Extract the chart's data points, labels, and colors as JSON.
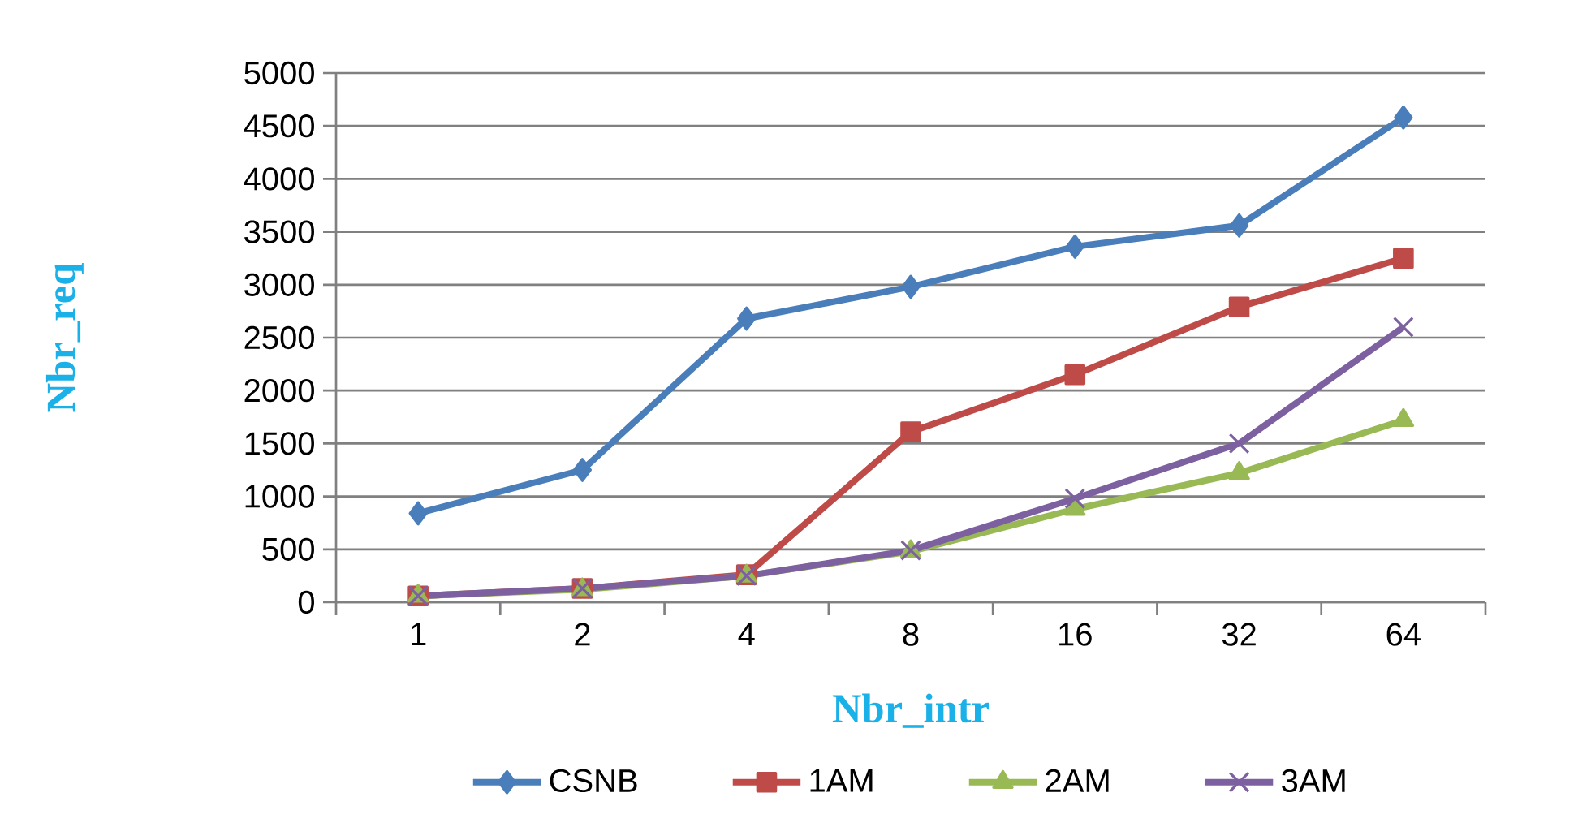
{
  "chart_data": {
    "type": "line",
    "xlabel": "Nbr_intr",
    "ylabel": "Nbr_req",
    "categories": [
      "1",
      "2",
      "4",
      "8",
      "16",
      "32",
      "64"
    ],
    "series": [
      {
        "name": "CSNB",
        "color": "#4a7ebb",
        "marker": "diamond",
        "values": [
          840,
          1250,
          2680,
          2980,
          3360,
          3560,
          4580
        ]
      },
      {
        "name": "1AM",
        "color": "#be4b48",
        "marker": "square",
        "values": [
          60,
          130,
          260,
          1610,
          2150,
          2790,
          3250
        ]
      },
      {
        "name": "2AM",
        "color": "#98b954",
        "marker": "triangle",
        "values": [
          60,
          120,
          250,
          480,
          880,
          1220,
          1720
        ]
      },
      {
        "name": "3AM",
        "color": "#7d60a0",
        "marker": "cross",
        "values": [
          60,
          130,
          250,
          490,
          980,
          1500,
          2600
        ]
      }
    ],
    "ylim": [
      0,
      5000
    ],
    "yticks": [
      0,
      500,
      1000,
      1500,
      2000,
      2500,
      3000,
      3500,
      4000,
      4500,
      5000
    ],
    "grid": "y",
    "legend": "bottom",
    "line_style": "solid"
  }
}
